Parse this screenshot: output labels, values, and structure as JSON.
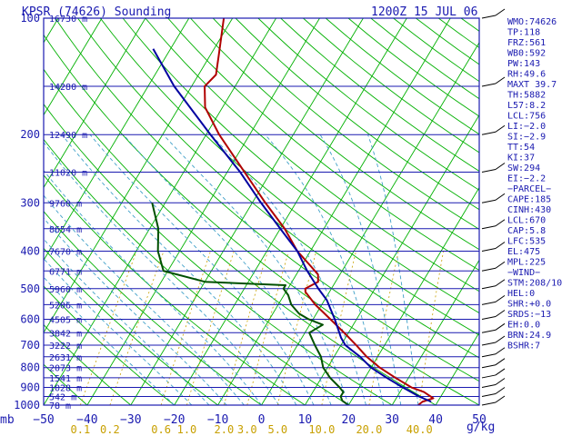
{
  "chart_data": {
    "type": "line",
    "title": "KPSR (74626) Sounding",
    "valid_time": "1200Z 15 JUL 06",
    "xlabel": "",
    "ylabel": "mb",
    "x_unit_right": "g/kg",
    "xlim": [
      -50,
      50
    ],
    "pressure_range": [
      1000,
      100
    ],
    "pressure_ticks": [
      "100",
      "200",
      "300",
      "400",
      "500",
      "600",
      "700",
      "800",
      "900",
      "1000"
    ],
    "temperature_ticks": [
      "−50",
      "−40",
      "−30",
      "−20",
      "−10",
      "0",
      "10",
      "20",
      "30",
      "40",
      "50"
    ],
    "mixing_ratio_labels": [
      "0.1",
      "0.2",
      "0.6",
      "1.0",
      "2.0",
      "3.0",
      "5.0",
      "10.0",
      "20.0",
      "40.0"
    ],
    "height_labels": [
      {
        "p": 100,
        "text": "16730 m"
      },
      {
        "p": 150,
        "text": "14280 m"
      },
      {
        "p": 200,
        "text": "12490 m"
      },
      {
        "p": 250,
        "text": "11020 m"
      },
      {
        "p": 300,
        "text": "9760 m"
      },
      {
        "p": 350,
        "text": "8654 m"
      },
      {
        "p": 400,
        "text": "7670 m"
      },
      {
        "p": 450,
        "text": "6771 m"
      },
      {
        "p": 500,
        "text": "5960 m"
      },
      {
        "p": 550,
        "text": "5206 m"
      },
      {
        "p": 600,
        "text": "4505 m"
      },
      {
        "p": 650,
        "text": "3842 m"
      },
      {
        "p": 700,
        "text": "3222 m"
      },
      {
        "p": 750,
        "text": "2631 m"
      },
      {
        "p": 800,
        "text": "2073 m"
      },
      {
        "p": 850,
        "text": "1541 m"
      },
      {
        "p": 900,
        "text": "1028 m"
      },
      {
        "p": 950,
        "text": "542 m"
      },
      {
        "p": 1000,
        "text": "78 m"
      }
    ],
    "series": [
      {
        "key": "temperature",
        "color": "#b00000",
        "p": [
          1000,
          980,
          960,
          925,
          900,
          850,
          800,
          750,
          700,
          650,
          600,
          550,
          510,
          500,
          480,
          460,
          440,
          400,
          350,
          300,
          250,
          200,
          170,
          150,
          140,
          125,
          100
        ],
        "t": [
          36,
          36.5,
          38.5,
          35.5,
          32,
          27,
          22,
          17.5,
          13.5,
          9,
          4,
          -1.5,
          -5.5,
          -6,
          -4,
          -5,
          -7.5,
          -13,
          -19,
          -27,
          -36,
          -47,
          -54,
          -57,
          -56,
          -58,
          -62
        ]
      },
      {
        "key": "dewpoint",
        "color": "#005000",
        "p": [
          1000,
          975,
          950,
          925,
          900,
          850,
          800,
          750,
          700,
          650,
          620,
          600,
          580,
          550,
          520,
          500,
          490,
          480,
          450,
          400,
          350,
          300
        ],
        "t": [
          20,
          18,
          17,
          17,
          15.5,
          12,
          9,
          7,
          4,
          1,
          3,
          -1,
          -4,
          -7,
          -9,
          -11,
          -11,
          -30,
          -41,
          -45,
          -48,
          -53
        ]
      },
      {
        "key": "parcel",
        "color": "#0000a0",
        "p": [
          980,
          950,
          900,
          850,
          800,
          750,
          700,
          670,
          600,
          535,
          500,
          450,
          400,
          350,
          300,
          250,
          200,
          150,
          120
        ],
        "t": [
          38.5,
          35,
          30,
          25,
          20,
          16,
          11,
          9,
          5,
          0.5,
          -3,
          -8,
          -13,
          -20,
          -28,
          -37,
          -49,
          -64,
          -74
        ]
      }
    ],
    "wind_profile": {
      "levels": [
        100,
        150,
        200,
        250,
        300,
        350,
        400,
        450,
        500,
        550,
        600,
        650,
        700,
        750,
        800,
        850,
        900,
        950,
        1000
      ]
    },
    "indices": [
      "WMO:74626",
      "TP:118",
      "FRZ:561",
      "WB0:592",
      "PW:143",
      "RH:49.6",
      "MAXT 39.7",
      "TH:5882",
      "L57:8.2",
      "LCL:756",
      "LI:−2.0",
      "SI:−2.9",
      "TT:54",
      "KI:37",
      "SW:294",
      "EI:−2.2",
      "−PARCEL−",
      "CAPE:185",
      "CINH:430",
      "LCL:670",
      "CAP:5.8",
      "LFC:535",
      "EL:475",
      "MPL:225",
      "−WIND−",
      "STM:208/10",
      "HEL:0",
      "SHR:+0.0",
      "SRDS:−13",
      "EH:0.0",
      "BRN:24.9",
      "BSHR:7"
    ],
    "colors": {
      "frame": "#1a1ab0",
      "isobar": "#1a1ab0",
      "isotherm": "#00b000",
      "dry_adiabat": "#00b000",
      "moist_adiabat": "#40a0c8",
      "mixing_ratio": "#c8a000",
      "wind_barb": "#000000"
    }
  }
}
